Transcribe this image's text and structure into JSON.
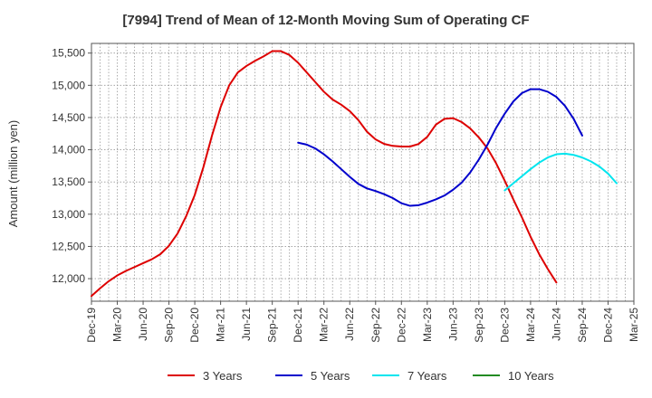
{
  "chart_data": {
    "type": "line",
    "title": "[7994]  Trend of Mean of 12-Month Moving Sum of Operating CF",
    "xlabel": "",
    "ylabel": "Amount (million yen)",
    "ylim": [
      11650,
      15650
    ],
    "yticks": [
      12000,
      12500,
      13000,
      13500,
      14000,
      14500,
      15000,
      15500
    ],
    "ytick_labels": [
      "12,000",
      "12,500",
      "13,000",
      "13,500",
      "14,000",
      "14,500",
      "15,000",
      "15,500"
    ],
    "x_categories": [
      "Dec-19",
      "Mar-20",
      "Jun-20",
      "Sep-20",
      "Dec-20",
      "Mar-21",
      "Jun-21",
      "Sep-21",
      "Dec-21",
      "Mar-22",
      "Jun-22",
      "Sep-22",
      "Dec-22",
      "Mar-23",
      "Jun-23",
      "Sep-23",
      "Dec-23",
      "Mar-24",
      "Jun-24",
      "Sep-24",
      "Dec-24",
      "Mar-25"
    ],
    "grid": true,
    "legend_position": "bottom",
    "series": [
      {
        "name": "3 Years",
        "color": "#dd0000",
        "start_index": 0,
        "values": [
          11730,
          11850,
          11960,
          12050,
          12120,
          12180,
          12240,
          12300,
          12380,
          12510,
          12700,
          12970,
          13300,
          13730,
          14220,
          14660,
          15000,
          15200,
          15300,
          15380,
          15450,
          15530,
          15530,
          15470,
          15350,
          15200,
          15050,
          14900,
          14780,
          14700,
          14600,
          14460,
          14280,
          14160,
          14090,
          14060,
          14050,
          14050,
          14090,
          14200,
          14390,
          14480,
          14490,
          14430,
          14330,
          14190,
          14020,
          13790,
          13520,
          13230,
          12950,
          12650,
          12380,
          12150,
          11940
        ]
      },
      {
        "name": "5 Years",
        "color": "#0000cc",
        "start_index": 24,
        "values": [
          14110,
          14080,
          14020,
          13930,
          13820,
          13700,
          13580,
          13470,
          13400,
          13360,
          13310,
          13250,
          13170,
          13130,
          13140,
          13180,
          13230,
          13290,
          13380,
          13490,
          13650,
          13850,
          14080,
          14340,
          14560,
          14750,
          14880,
          14940,
          14940,
          14900,
          14820,
          14680,
          14480,
          14220
        ]
      },
      {
        "name": "7 Years",
        "color": "#00e5ee",
        "start_index": 48,
        "values": [
          13370,
          13480,
          13590,
          13700,
          13800,
          13880,
          13930,
          13940,
          13920,
          13880,
          13820,
          13740,
          13630,
          13480
        ]
      },
      {
        "name": "10 Years",
        "color": "#228b22",
        "start_index": 0,
        "values": []
      }
    ]
  }
}
